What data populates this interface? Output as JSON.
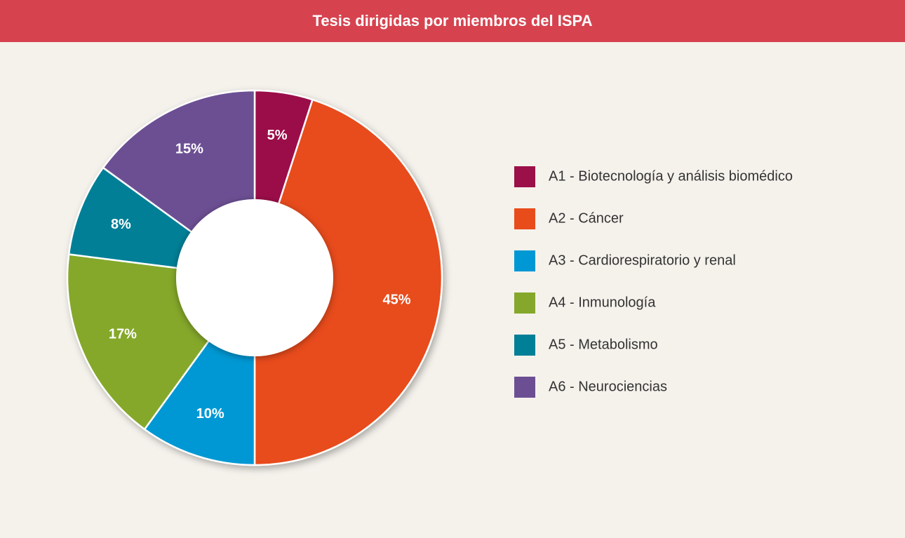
{
  "chart_data": {
    "type": "pie",
    "title": "Tesis dirigidas por miembros del ISPA",
    "categories": [
      "A1 - Biotecnología y análisis biomédico",
      "A2 - Cáncer",
      "A3 - Cardiorespiratorio y renal",
      "A4 - Inmunología",
      "A5 - Metabolismo",
      "A6 - Neurociencias"
    ],
    "values": [
      5,
      45,
      10,
      17,
      8,
      15
    ],
    "value_labels": [
      "5%",
      "45%",
      "10%",
      "17%",
      "8%",
      "15%"
    ],
    "colors": [
      "#9b1048",
      "#e84c1b",
      "#0098d4",
      "#85a82c",
      "#007f96",
      "#6c4f93"
    ],
    "legend": "right"
  }
}
